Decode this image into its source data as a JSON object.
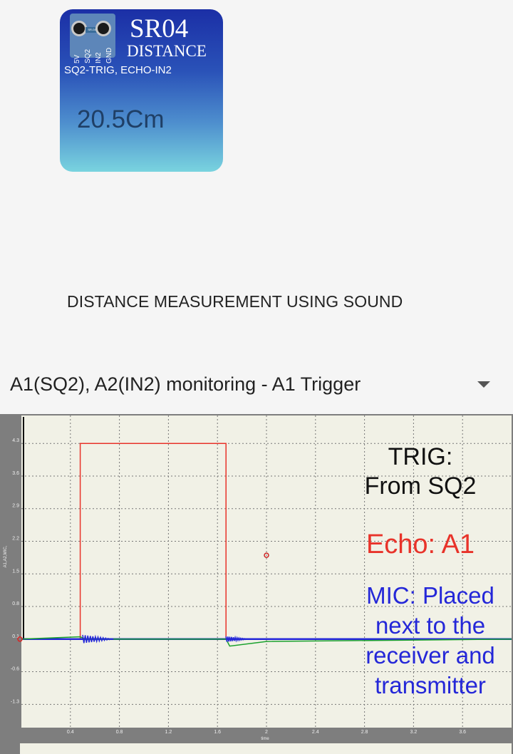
{
  "widget": {
    "title": "SR04",
    "subtitle": "DISTANCE",
    "pins": [
      "5V",
      "SQ2",
      "IN2",
      "GND"
    ],
    "chip_label": "SR-04",
    "connections": "SQ2-TRIG, ECHO-IN2",
    "value": "20.5Cm"
  },
  "heading": "DISTANCE MEASUREMENT USING SOUND",
  "selector": {
    "selected": "A1(SQ2), A2(IN2) monitoring - A1 Trigger"
  },
  "colors": {
    "echo": "#e8332a",
    "mic": "#2427d8",
    "trig_label": "#111111",
    "plot_bg": "#f1f1e6",
    "green_trace": "#19a12c"
  },
  "chart_data": {
    "type": "line",
    "ylabel": "A1,A2,MIC,",
    "xlabel": "time",
    "x_ticks": [
      "0.4",
      "0.8",
      "1.2",
      "1.6",
      "2",
      "2.4",
      "2.8",
      "3.2",
      "3.6"
    ],
    "y_ticks": [
      "4.3",
      "3.6",
      "2.9",
      "2.2",
      "1.5",
      "0.8",
      "0.1",
      "-0.6",
      "-1.3"
    ],
    "xlim": [
      0.0,
      4.0
    ],
    "ylim": [
      -1.8,
      4.9
    ],
    "grid": true,
    "series": [
      {
        "name": "Echo: A1",
        "color": "#e8332a",
        "x": [
          0.0,
          0.48,
          0.48,
          1.67,
          1.67,
          4.0
        ],
        "y": [
          0.1,
          0.1,
          4.3,
          4.3,
          0.1,
          0.1
        ]
      },
      {
        "name": "MIC",
        "color": "#2427d8",
        "x": [
          0.0,
          0.5,
          0.7,
          1.65,
          1.85,
          4.0
        ],
        "y": [
          0.1,
          0.1,
          0.1,
          0.1,
          0.1,
          0.1
        ]
      },
      {
        "color": "#19a12c",
        "x": [
          0.0,
          0.48,
          0.52,
          1.67,
          1.7,
          2.0,
          4.0
        ],
        "y": [
          0.1,
          0.15,
          0.1,
          0.1,
          -0.05,
          0.05,
          0.1
        ]
      }
    ],
    "annotations": [
      {
        "text": "TRIG:\nFrom SQ2"
      },
      {
        "text": "Echo: A1"
      },
      {
        "text": "MIC: Placed\nnext to the\nreceiver and\ntransmitter"
      }
    ]
  },
  "overlay": {
    "trig_line1": "TRIG:",
    "trig_line2": "From SQ2",
    "echo": "Echo: A1",
    "mic_line1": "MIC: Placed",
    "mic_line2": "next to the",
    "mic_line3": "receiver and",
    "mic_line4": "transmitter"
  }
}
